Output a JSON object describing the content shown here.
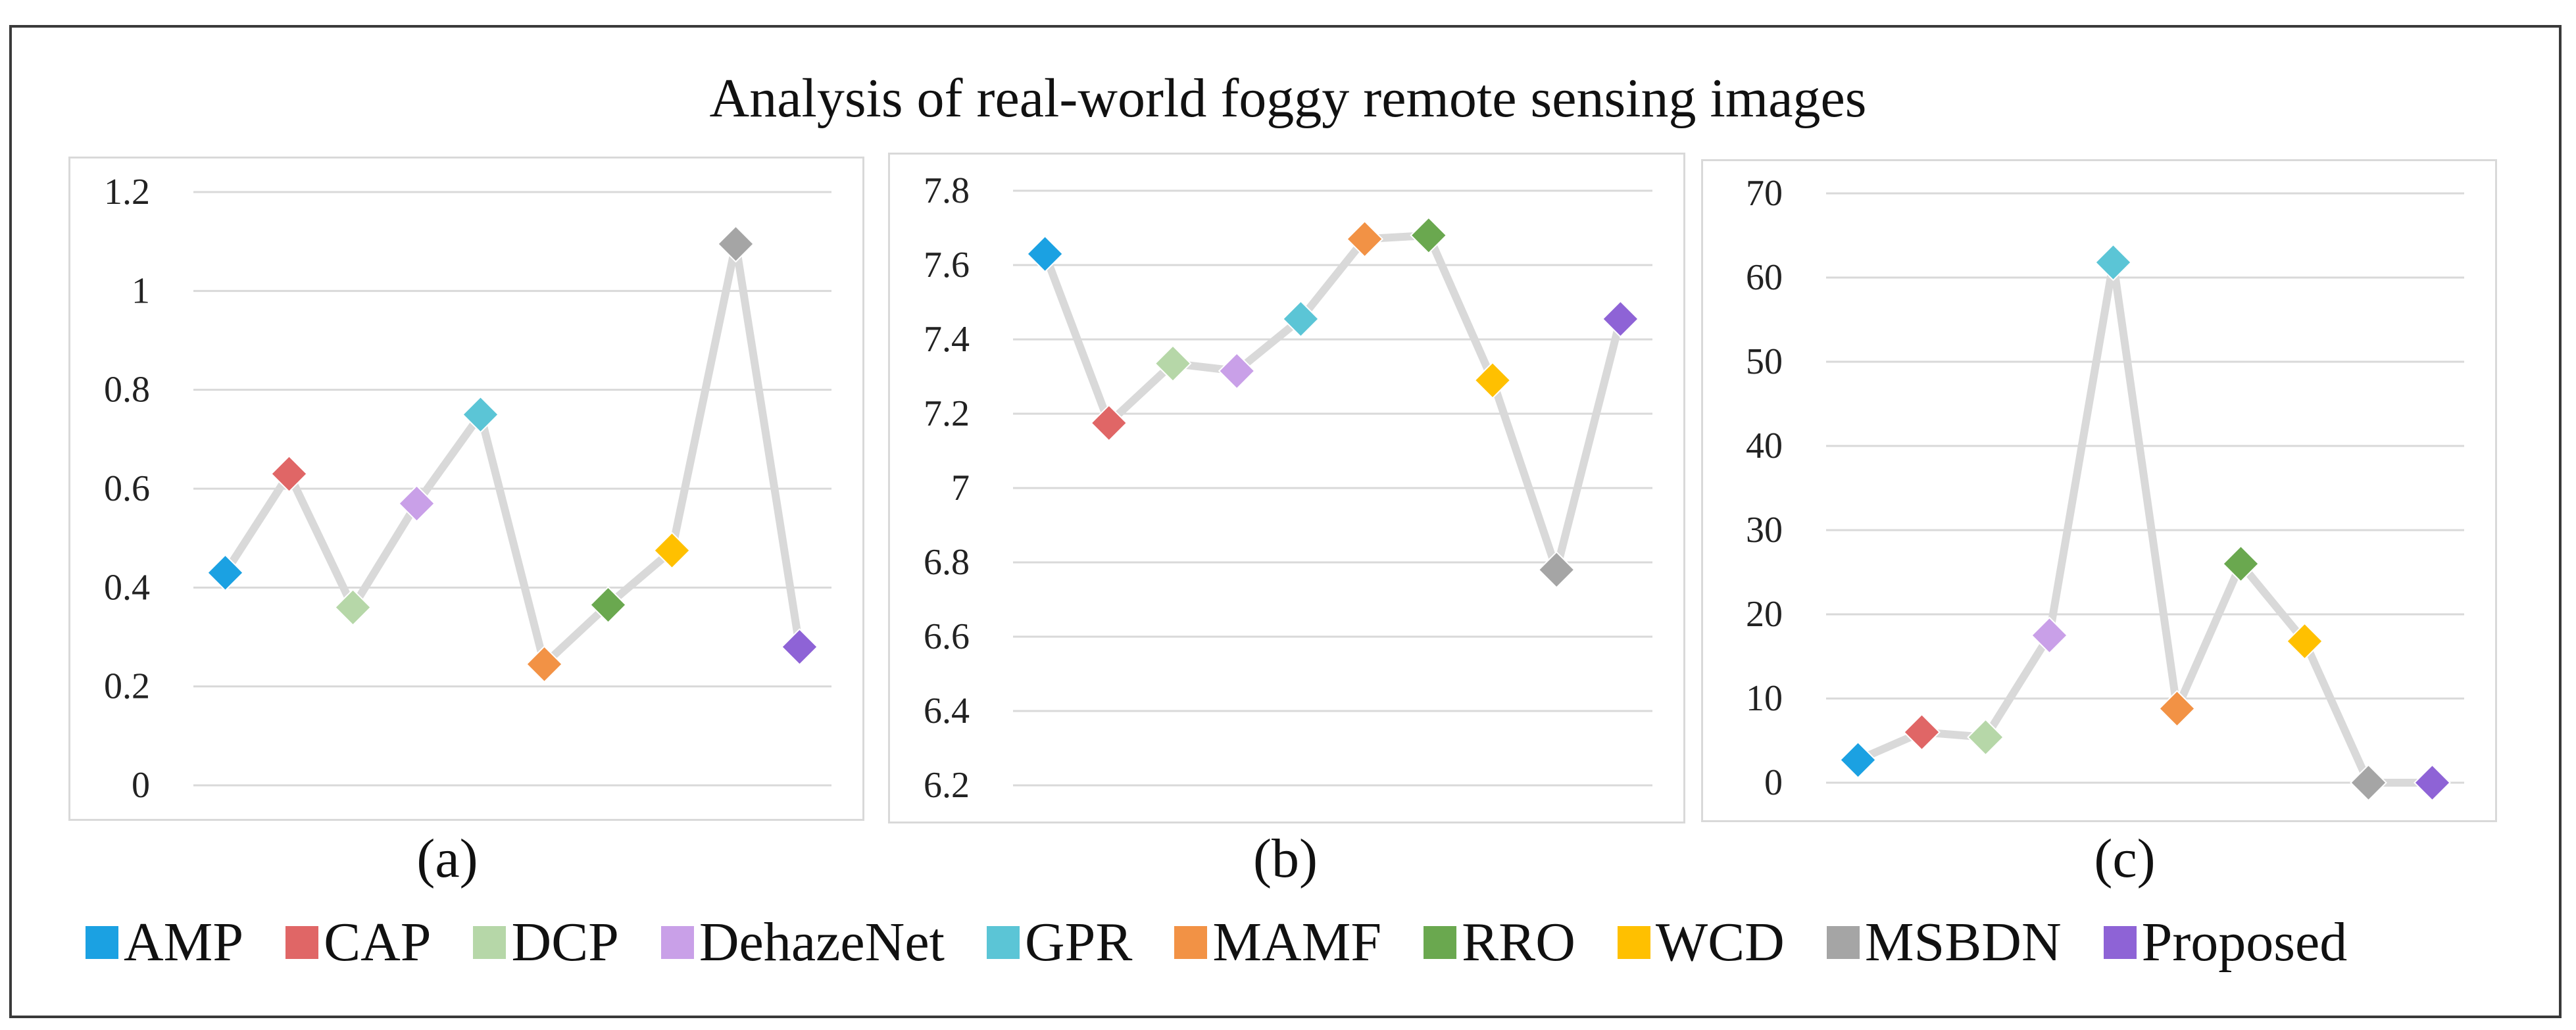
{
  "title": "Analysis of real-world foggy remote sensing images",
  "legend": [
    {
      "label": "AMP",
      "color": "#1ba1e2"
    },
    {
      "label": "CAP",
      "color": "#e06666"
    },
    {
      "label": "DCP",
      "color": "#b6d7a8"
    },
    {
      "label": "DehazeNet",
      "color": "#c9a0e8"
    },
    {
      "label": "GPR",
      "color": "#5bc5d6"
    },
    {
      "label": "MAMF",
      "color": "#f29245"
    },
    {
      "label": "RRO",
      "color": "#6aa84f"
    },
    {
      "label": "WCD",
      "color": "#ffc000"
    },
    {
      "label": "MSBDN",
      "color": "#a5a5a5"
    },
    {
      "label": "Proposed",
      "color": "#8e63d6"
    }
  ],
  "line_color": "#d9d9d9",
  "chart_data": [
    {
      "type": "line",
      "caption": "(a)",
      "categories": [
        "AMP",
        "CAP",
        "DCP",
        "DehazeNet",
        "GPR",
        "MAMF",
        "RRO",
        "WCD",
        "MSBDN",
        "Proposed"
      ],
      "values": [
        0.43,
        0.63,
        0.36,
        0.57,
        0.75,
        0.245,
        0.365,
        0.475,
        1.095,
        0.28
      ],
      "ylim": [
        0,
        1.2
      ],
      "yticks": [
        0,
        0.2,
        0.4,
        0.6,
        0.8,
        1,
        1.2
      ],
      "ytick_labels": [
        "0",
        "0.2",
        "0.4",
        "0.6",
        "0.8",
        "1",
        "1.2"
      ],
      "grid": true
    },
    {
      "type": "line",
      "caption": "(b)",
      "categories": [
        "AMP",
        "CAP",
        "DCP",
        "DehazeNet",
        "GPR",
        "MAMF",
        "RRO",
        "WCD",
        "MSBDN",
        "Proposed"
      ],
      "values": [
        7.63,
        7.175,
        7.335,
        7.315,
        7.455,
        7.67,
        7.68,
        7.29,
        6.78,
        7.455
      ],
      "ylim": [
        6.2,
        7.8
      ],
      "yticks": [
        6.2,
        6.4,
        6.6,
        6.8,
        7.0,
        7.2,
        7.4,
        7.6,
        7.8
      ],
      "ytick_labels": [
        "6.2",
        "6.4",
        "6.6",
        "6.8",
        "7",
        "7.2",
        "7.4",
        "7.6",
        "7.8"
      ],
      "grid": true
    },
    {
      "type": "line",
      "caption": "(c)",
      "categories": [
        "AMP",
        "CAP",
        "DCP",
        "DehazeNet",
        "GPR",
        "MAMF",
        "RRO",
        "WCD",
        "MSBDN",
        "Proposed"
      ],
      "values": [
        2.7,
        6.0,
        5.4,
        17.5,
        61.8,
        8.8,
        26.0,
        16.8,
        0.0,
        0.0
      ],
      "ylim": [
        0,
        70
      ],
      "yticks": [
        0,
        10,
        20,
        30,
        40,
        50,
        60,
        70
      ],
      "ytick_labels": [
        "0",
        "10",
        "20",
        "30",
        "40",
        "50",
        "60",
        "70"
      ],
      "grid": true
    }
  ]
}
